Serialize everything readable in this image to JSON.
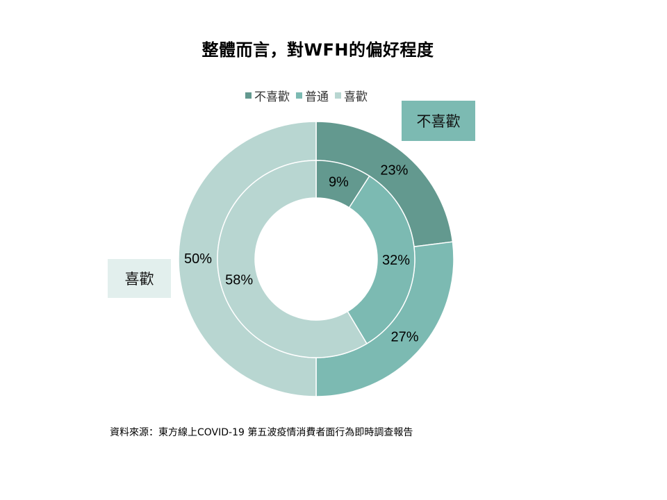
{
  "colors": {
    "dislike": "#63998F",
    "neutral": "#7CBAB2",
    "like": "#B8D6D1",
    "callout_like_bg": "#E2EFED"
  },
  "chart_data": {
    "type": "pie",
    "subtype": "nested-doughnut",
    "title": "整體而言，對WFH的偏好程度",
    "categories": [
      "不喜歡",
      "普通",
      "喜歡"
    ],
    "legend_position": "top",
    "series": [
      {
        "values": [
          23,
          27,
          50
        ],
        "labels": [
          "23%",
          "27%",
          "50%"
        ]
      },
      {
        "values": [
          9,
          32,
          58
        ],
        "labels": [
          "9%",
          "32%",
          "58%"
        ]
      }
    ],
    "annotations": [
      "不喜歡",
      "喜歡"
    ]
  },
  "source_note": "資料來源：東方線上COVID-19 第五波疫情消費者面行為即時調查報告"
}
